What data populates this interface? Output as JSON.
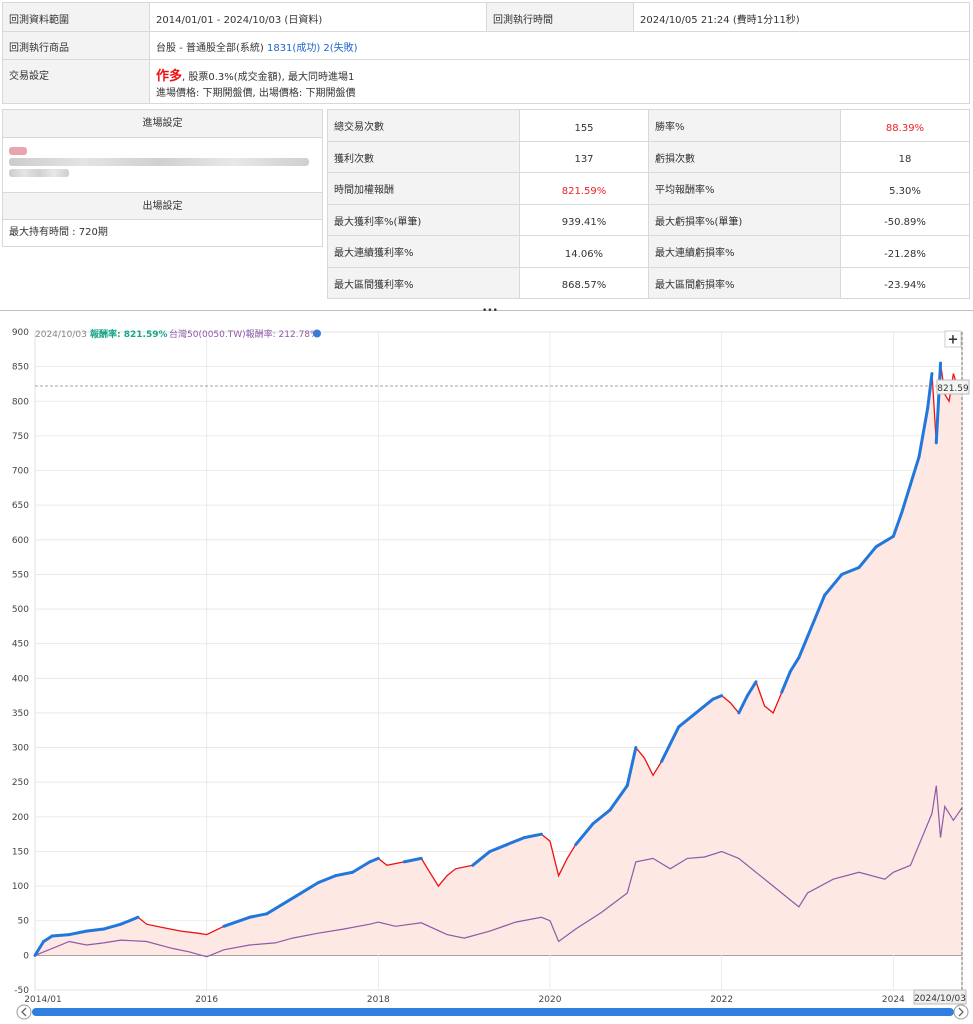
{
  "info": {
    "period_label": "回測資料範圍",
    "period_value": "2014/01/01 - 2024/10/03 (日資料)",
    "runtime_label": "回測執行時間",
    "runtime_value": "2024/10/05 21:24 (費時1分11秒)",
    "product_label": "回測執行商品",
    "product_value": "台股 - 普通股全部(系統)",
    "product_success": "1831(成功)",
    "product_fail": "2(失敗)",
    "trade_label": "交易設定",
    "trade_mode": "作多",
    "trade_desc": ", 股票0.3%(成交金額), 最大同時進場1",
    "trade_price": "進場價格: 下期開盤價, 出場價格: 下期開盤價"
  },
  "left": {
    "entry_header": "進場設定",
    "exit_header": "出場設定",
    "exit_text": "最大持有時間 : 720期"
  },
  "stats": [
    {
      "k1": "總交易次數",
      "v1": "155",
      "k2": "勝率%",
      "v2": "88.39%",
      "v2_red": true
    },
    {
      "k1": "獲利次數",
      "v1": "137",
      "k2": "虧損次數",
      "v2": "18"
    },
    {
      "k1": "時間加權報酬",
      "v1": "821.59%",
      "v1_red": true,
      "k2": "平均報酬率%",
      "v2": "5.30%"
    },
    {
      "k1": "最大獲利率%(單筆)",
      "v1": "939.41%",
      "k2": "最大虧損率%(單筆)",
      "v2": "-50.89%"
    },
    {
      "k1": "最大連續獲利率%",
      "v1": "14.06%",
      "k2": "最大連續虧損率%",
      "v2": "-21.28%"
    },
    {
      "k1": "最大區間獲利率%",
      "v1": "868.57%",
      "k2": "最大區間虧損率%",
      "v2": "-23.94%"
    }
  ],
  "splitter_glyph": "•••",
  "chart_data": {
    "type": "line",
    "legend": {
      "date": "2024/10/03",
      "series1_label": "報酬率: 821.59%",
      "series2_label": "台灣50(0050.TW)報酬率: 212.78%"
    },
    "last_value_label": "821.59",
    "cursor_date": "2024/10/03",
    "plus_glyph": "+",
    "y_ticks": [
      "900",
      "850",
      "800",
      "750",
      "700",
      "650",
      "600",
      "550",
      "500",
      "450",
      "400",
      "350",
      "300",
      "250",
      "200",
      "150",
      "100",
      "50",
      "0",
      "-50"
    ],
    "ylim": [
      -50,
      900
    ],
    "x_ticks": [
      "2014/01",
      "2016",
      "2018",
      "2020",
      "2022",
      "2024"
    ],
    "last_x_tick": "2030",
    "x_tick_years": [
      2014.0,
      2016.0,
      2018.0,
      2020.0,
      2022.0,
      2024.0
    ],
    "xlim": [
      2014.0,
      2024.8
    ],
    "colors": {
      "strategy": "#ee1111",
      "strategy_highlight": "#2277dd",
      "benchmark": "#8e5aa8",
      "fill": "#fde8e4"
    },
    "series": [
      {
        "name": "報酬率",
        "x": [
          2014.0,
          2014.1,
          2014.2,
          2014.4,
          2014.6,
          2014.8,
          2015.0,
          2015.2,
          2015.3,
          2015.5,
          2015.7,
          2015.9,
          2016.0,
          2016.2,
          2016.5,
          2016.7,
          2016.9,
          2017.1,
          2017.3,
          2017.5,
          2017.7,
          2017.9,
          2018.0,
          2018.1,
          2018.3,
          2018.5,
          2018.6,
          2018.7,
          2018.8,
          2018.9,
          2019.1,
          2019.3,
          2019.5,
          2019.7,
          2019.9,
          2020.0,
          2020.1,
          2020.2,
          2020.3,
          2020.5,
          2020.7,
          2020.9,
          2021.0,
          2021.1,
          2021.2,
          2021.3,
          2021.5,
          2021.7,
          2021.9,
          2022.0,
          2022.1,
          2022.2,
          2022.3,
          2022.4,
          2022.5,
          2022.6,
          2022.7,
          2022.8,
          2022.9,
          2023.0,
          2023.2,
          2023.4,
          2023.6,
          2023.8,
          2024.0,
          2024.1,
          2024.2,
          2024.3,
          2024.4,
          2024.45,
          2024.5,
          2024.55,
          2024.6,
          2024.65,
          2024.7,
          2024.75,
          2024.8
        ],
        "values": [
          0,
          20,
          28,
          30,
          35,
          38,
          45,
          55,
          45,
          40,
          35,
          32,
          30,
          42,
          55,
          60,
          75,
          90,
          105,
          115,
          120,
          135,
          140,
          130,
          135,
          140,
          120,
          100,
          115,
          125,
          130,
          150,
          160,
          170,
          175,
          165,
          115,
          140,
          160,
          190,
          210,
          245,
          300,
          285,
          260,
          280,
          330,
          350,
          370,
          375,
          365,
          350,
          375,
          395,
          360,
          350,
          380,
          410,
          430,
          460,
          520,
          550,
          560,
          590,
          605,
          640,
          680,
          720,
          790,
          840,
          740,
          855,
          810,
          800,
          840,
          820,
          822
        ]
      },
      {
        "name": "台灣50(0050.TW)",
        "x": [
          2014.0,
          2014.2,
          2014.4,
          2014.6,
          2014.8,
          2015.0,
          2015.3,
          2015.6,
          2015.8,
          2016.0,
          2016.2,
          2016.5,
          2016.8,
          2017.0,
          2017.3,
          2017.6,
          2017.9,
          2018.0,
          2018.2,
          2018.5,
          2018.8,
          2019.0,
          2019.3,
          2019.6,
          2019.9,
          2020.0,
          2020.1,
          2020.3,
          2020.6,
          2020.9,
          2021.0,
          2021.2,
          2021.4,
          2021.6,
          2021.8,
          2022.0,
          2022.2,
          2022.4,
          2022.6,
          2022.8,
          2022.9,
          2023.0,
          2023.3,
          2023.6,
          2023.9,
          2024.0,
          2024.2,
          2024.35,
          2024.45,
          2024.5,
          2024.55,
          2024.6,
          2024.7,
          2024.8
        ],
        "values": [
          0,
          10,
          20,
          15,
          18,
          22,
          20,
          10,
          5,
          -2,
          8,
          15,
          18,
          25,
          32,
          38,
          45,
          48,
          42,
          47,
          30,
          25,
          35,
          48,
          55,
          50,
          20,
          38,
          62,
          90,
          135,
          140,
          125,
          140,
          142,
          150,
          140,
          120,
          100,
          80,
          70,
          90,
          110,
          120,
          110,
          120,
          130,
          175,
          205,
          245,
          170,
          215,
          195,
          213
        ]
      }
    ]
  }
}
